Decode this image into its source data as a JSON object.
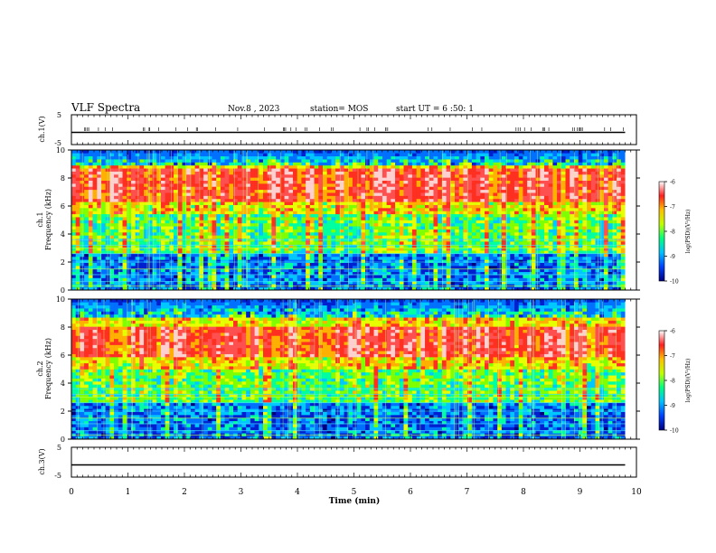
{
  "header": {
    "title": "VLF Spectra",
    "date": "Nov.8 , 2023",
    "station": "station= MOS",
    "start": "start UT = 6 :50: 1"
  },
  "chart_data": [
    {
      "type": "line",
      "panel": "ch.1 voltage",
      "ylabel": "ch.1(V)",
      "ylim": [
        -5,
        5
      ],
      "yticks": [
        "5",
        "-5"
      ],
      "x": [
        0,
        9.8
      ],
      "values": [
        0,
        0
      ],
      "xlim": [
        0,
        10
      ]
    },
    {
      "type": "heatmap",
      "panel": "ch.1 spectrogram",
      "ylabel": "ch.1\nFrequency (kHz)",
      "ylim": [
        0,
        10
      ],
      "yticks": [
        "0",
        "2",
        "4",
        "6",
        "8",
        "10"
      ],
      "xlim": [
        0,
        10
      ],
      "x_data_end": 9.8,
      "intense_band_khz": [
        5.5,
        9.0
      ],
      "peak_band_khz": [
        6.2,
        8.6
      ],
      "colorbar": {
        "label": "log(PSD)(V²/Hz)",
        "range": [
          -10,
          -6
        ],
        "ticks": [
          "-6",
          "-7",
          "-8",
          "-9",
          "-10"
        ],
        "colors": [
          "#000080",
          "#0040ff",
          "#00c0ff",
          "#00ff80",
          "#c0ff00",
          "#ffc000",
          "#ff2020",
          "#ffffff"
        ]
      }
    },
    {
      "type": "heatmap",
      "panel": "ch.2 spectrogram",
      "ylabel": "ch.2\nFrequency (kHz)",
      "ylim": [
        0,
        10
      ],
      "yticks": [
        "0",
        "2",
        "4",
        "6",
        "8",
        "10"
      ],
      "xlim": [
        0,
        10
      ],
      "x_data_end": 9.8,
      "intense_band_khz": [
        5.0,
        8.8
      ],
      "peak_band_khz": [
        5.8,
        8.0
      ],
      "colorbar": {
        "label": "log(PSD)(V²/Hz)",
        "range": [
          -10,
          -6
        ],
        "ticks": [
          "-6",
          "-7",
          "-8",
          "-9",
          "-10"
        ],
        "colors": [
          "#000080",
          "#0040ff",
          "#00c0ff",
          "#00ff80",
          "#c0ff00",
          "#ffc000",
          "#ff2020",
          "#ffffff"
        ]
      }
    },
    {
      "type": "line",
      "panel": "ch.3 voltage",
      "ylabel": "ch.3(V)",
      "ylim": [
        -5,
        5
      ],
      "yticks": [
        "5",
        "-5"
      ],
      "x": [
        0,
        9.8
      ],
      "values": [
        0,
        0
      ],
      "xlim": [
        0,
        10
      ],
      "xlabel": "Time (min)",
      "xticks": [
        "0",
        "1",
        "2",
        "3",
        "4",
        "5",
        "6",
        "7",
        "8",
        "9",
        "10"
      ]
    }
  ]
}
